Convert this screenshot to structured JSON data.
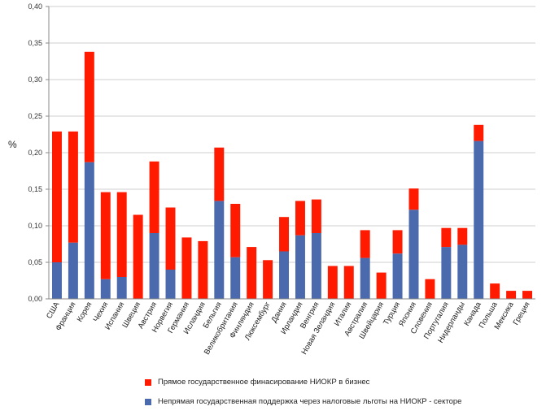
{
  "chart_data": {
    "type": "bar",
    "stacked": true,
    "ylabel": "%",
    "ylim": [
      0,
      0.4
    ],
    "yticks": [
      "0,00",
      "0,05",
      "0,10",
      "0,15",
      "0,20",
      "0,25",
      "0,30",
      "0,35",
      "0,40"
    ],
    "grid": true,
    "legend_position": "bottom",
    "categories": [
      "США",
      "Франция",
      "Корея",
      "Чехия",
      "Испания",
      "Швеция",
      "Австрия",
      "Норвегия",
      "Германия",
      "Исландия",
      "Бельгия",
      "Великобритания",
      "Финляндия",
      "Люксембург",
      "Дания",
      "Ирландия",
      "Венгрия",
      "Новая Зеландия",
      "Италия",
      "Австралия",
      "Швейцария",
      "Турция",
      "Япония",
      "Словения",
      "Португалия",
      "Нидерланды",
      "Канада",
      "Польша",
      "Мексика",
      "Греция"
    ],
    "series": [
      {
        "name": "Непрямая государственная поддержка через налоговые льготы на НИОКР - секторе",
        "color": "#4a6aad",
        "values": [
          0.05,
          0.077,
          0.187,
          0.027,
          0.03,
          0.0,
          0.09,
          0.04,
          0.0,
          0.0,
          0.134,
          0.057,
          0.0,
          0.0,
          0.065,
          0.087,
          0.09,
          0.0,
          0.0,
          0.056,
          0.0,
          0.062,
          0.122,
          0.0,
          0.071,
          0.074,
          0.216,
          0.0,
          0.0,
          0.0
        ]
      },
      {
        "name": "Прямое государственное финасирование НИОКР в бизнес",
        "color": "#ff1a00",
        "values": [
          0.179,
          0.152,
          0.151,
          0.119,
          0.116,
          0.115,
          0.098,
          0.085,
          0.084,
          0.079,
          0.073,
          0.073,
          0.071,
          0.053,
          0.047,
          0.047,
          0.046,
          0.045,
          0.045,
          0.038,
          0.036,
          0.032,
          0.029,
          0.027,
          0.026,
          0.023,
          0.022,
          0.021,
          0.011,
          0.011
        ]
      }
    ]
  },
  "legend": {
    "direct_label": "Прямое государственное финасирование НИОКР в бизнес",
    "indirect_label": "Непрямая государственная поддержка через налоговые льготы на НИОКР - секторе"
  }
}
